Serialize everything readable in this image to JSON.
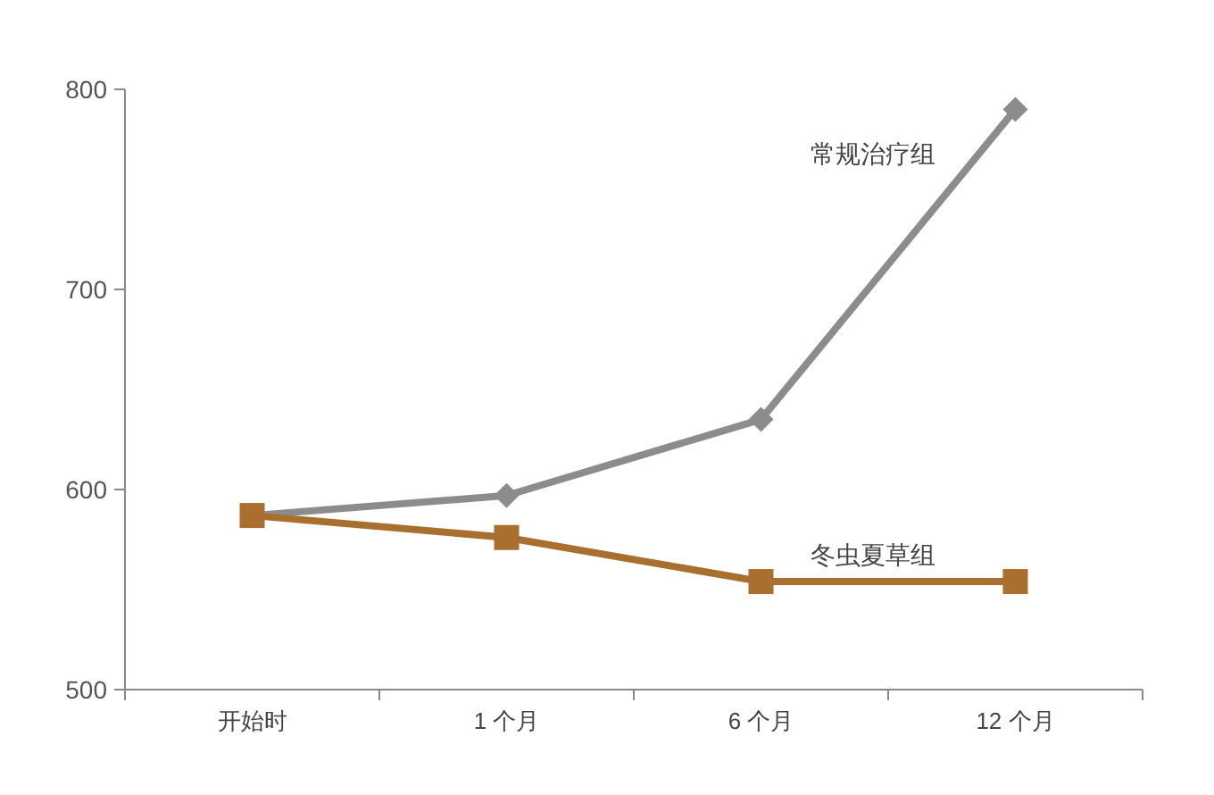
{
  "chart_data": {
    "type": "line",
    "categories": [
      "开始时",
      "1 个月",
      "6 个月",
      "12 个月"
    ],
    "ylim": [
      500,
      800
    ],
    "yticks": [
      500,
      600,
      700,
      800
    ],
    "grid": false,
    "series": [
      {
        "name": "常规治疗组",
        "color": "#8c8c8c",
        "marker": "diamond",
        "values": [
          587,
          597,
          635,
          790
        ]
      },
      {
        "name": "冬虫夏草组",
        "color": "#a86f2e",
        "marker": "square",
        "values": [
          587,
          576,
          554,
          554
        ]
      }
    ]
  }
}
